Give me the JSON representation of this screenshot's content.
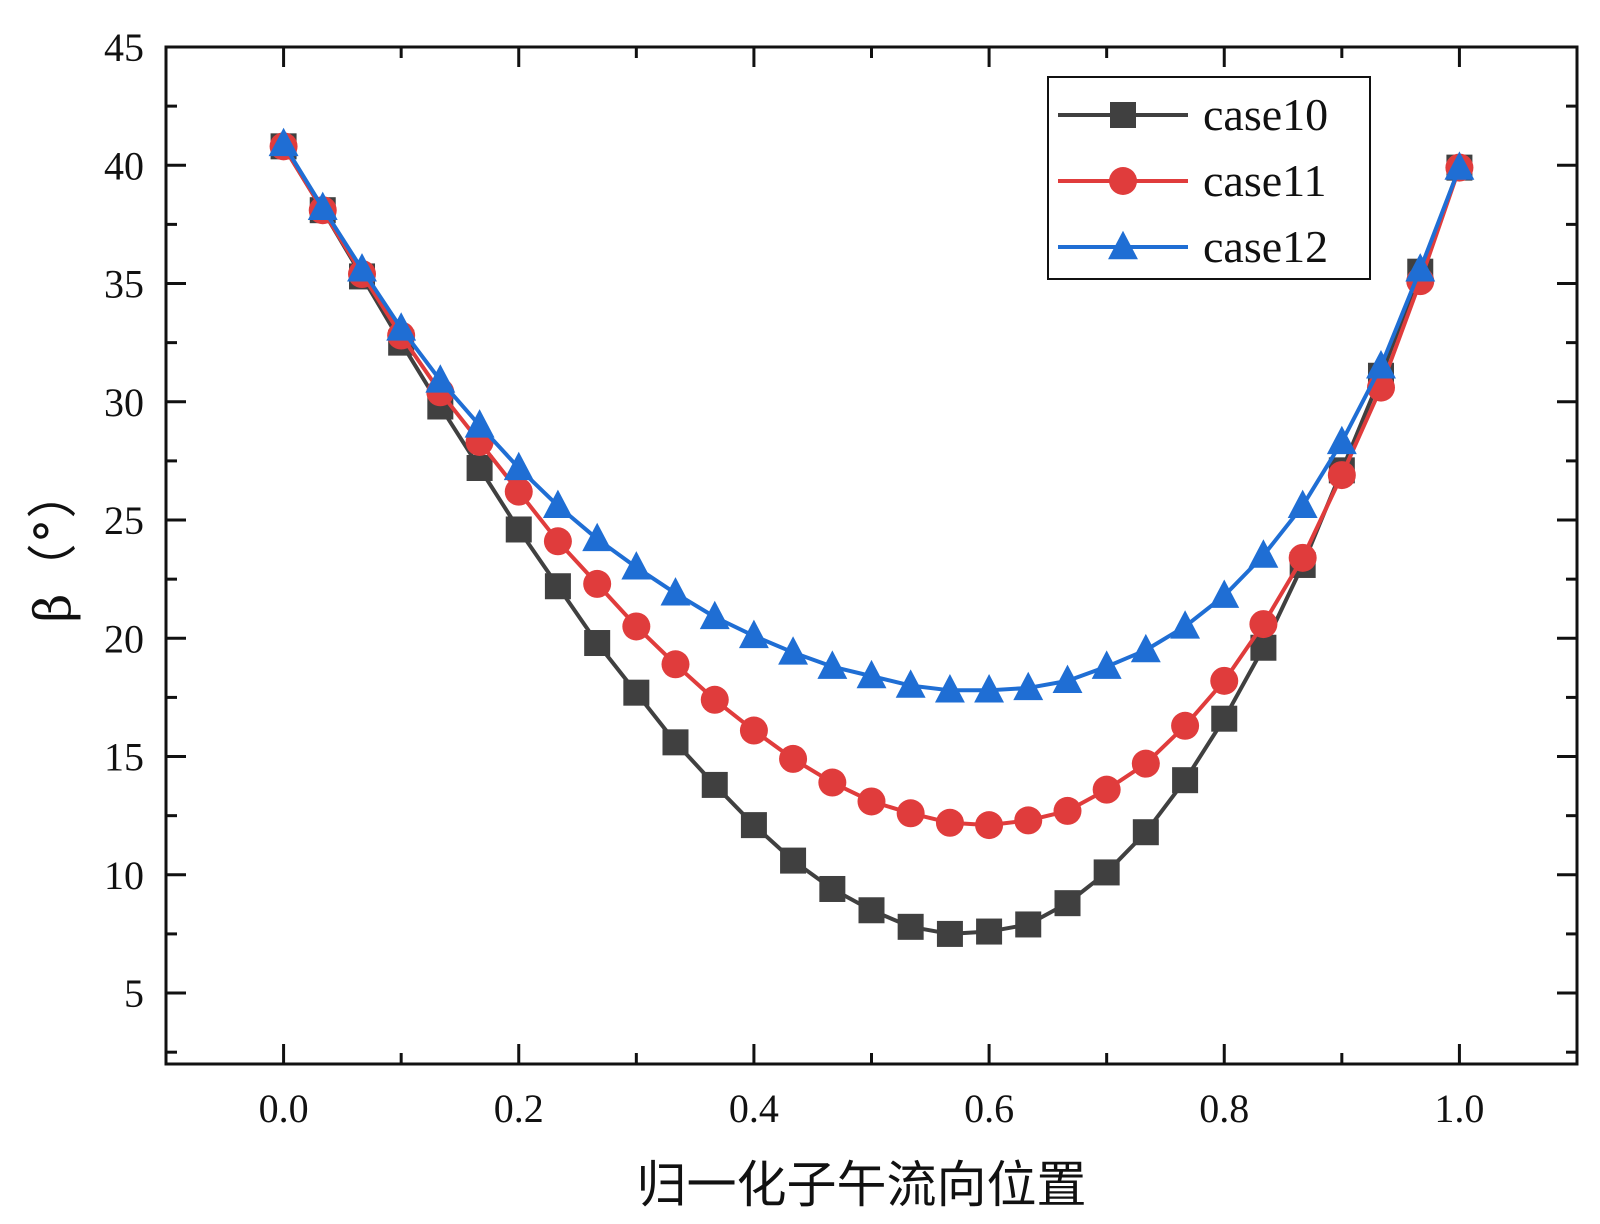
{
  "chart_data": {
    "type": "line",
    "title": "",
    "xlabel": "归一化子午流向位置",
    "ylabel": "β（°）",
    "xlim": [
      -0.1,
      1.1
    ],
    "ylim": [
      2,
      45
    ],
    "xticks": [
      "0.0",
      "0.2",
      "0.4",
      "0.6",
      "0.8",
      "1.0"
    ],
    "yticks": [
      "5",
      "10",
      "15",
      "20",
      "25",
      "30",
      "35",
      "40",
      "45"
    ],
    "grid": false,
    "legend_position": "top-right",
    "x": [
      0.0,
      0.0333,
      0.0667,
      0.1,
      0.1333,
      0.1667,
      0.2,
      0.2333,
      0.2667,
      0.3,
      0.3333,
      0.3667,
      0.4,
      0.4333,
      0.4667,
      0.5,
      0.5333,
      0.5667,
      0.6,
      0.6333,
      0.6667,
      0.7,
      0.7333,
      0.7667,
      0.8,
      0.8333,
      0.8667,
      0.9,
      0.9333,
      0.9667,
      1.0
    ],
    "series": [
      {
        "name": "case10",
        "color": "#404040",
        "marker": "square",
        "values": [
          40.8,
          38.1,
          35.3,
          32.5,
          29.8,
          27.2,
          24.6,
          22.2,
          19.8,
          17.7,
          15.6,
          13.8,
          12.1,
          10.6,
          9.4,
          8.5,
          7.8,
          7.5,
          7.6,
          7.9,
          8.8,
          10.1,
          11.8,
          14.0,
          16.6,
          19.6,
          23.1,
          27.1,
          31.1,
          35.5,
          39.9
        ]
      },
      {
        "name": "case11",
        "color": "#e03c3c",
        "marker": "circle",
        "values": [
          40.8,
          38.1,
          35.4,
          32.8,
          30.4,
          28.3,
          26.2,
          24.1,
          22.3,
          20.5,
          18.9,
          17.4,
          16.1,
          14.9,
          13.9,
          13.1,
          12.6,
          12.2,
          12.1,
          12.3,
          12.7,
          13.6,
          14.7,
          16.3,
          18.2,
          20.6,
          23.4,
          26.9,
          30.6,
          35.1,
          39.9
        ]
      },
      {
        "name": "case12",
        "color": "#1f6ed4",
        "marker": "triangle",
        "values": [
          40.9,
          38.2,
          35.6,
          33.1,
          30.9,
          29.0,
          27.2,
          25.6,
          24.2,
          23.0,
          21.9,
          20.9,
          20.1,
          19.4,
          18.8,
          18.4,
          18.0,
          17.8,
          17.8,
          17.9,
          18.2,
          18.8,
          19.5,
          20.5,
          21.8,
          23.5,
          25.6,
          28.3,
          31.5,
          35.6,
          39.9
        ]
      }
    ]
  }
}
